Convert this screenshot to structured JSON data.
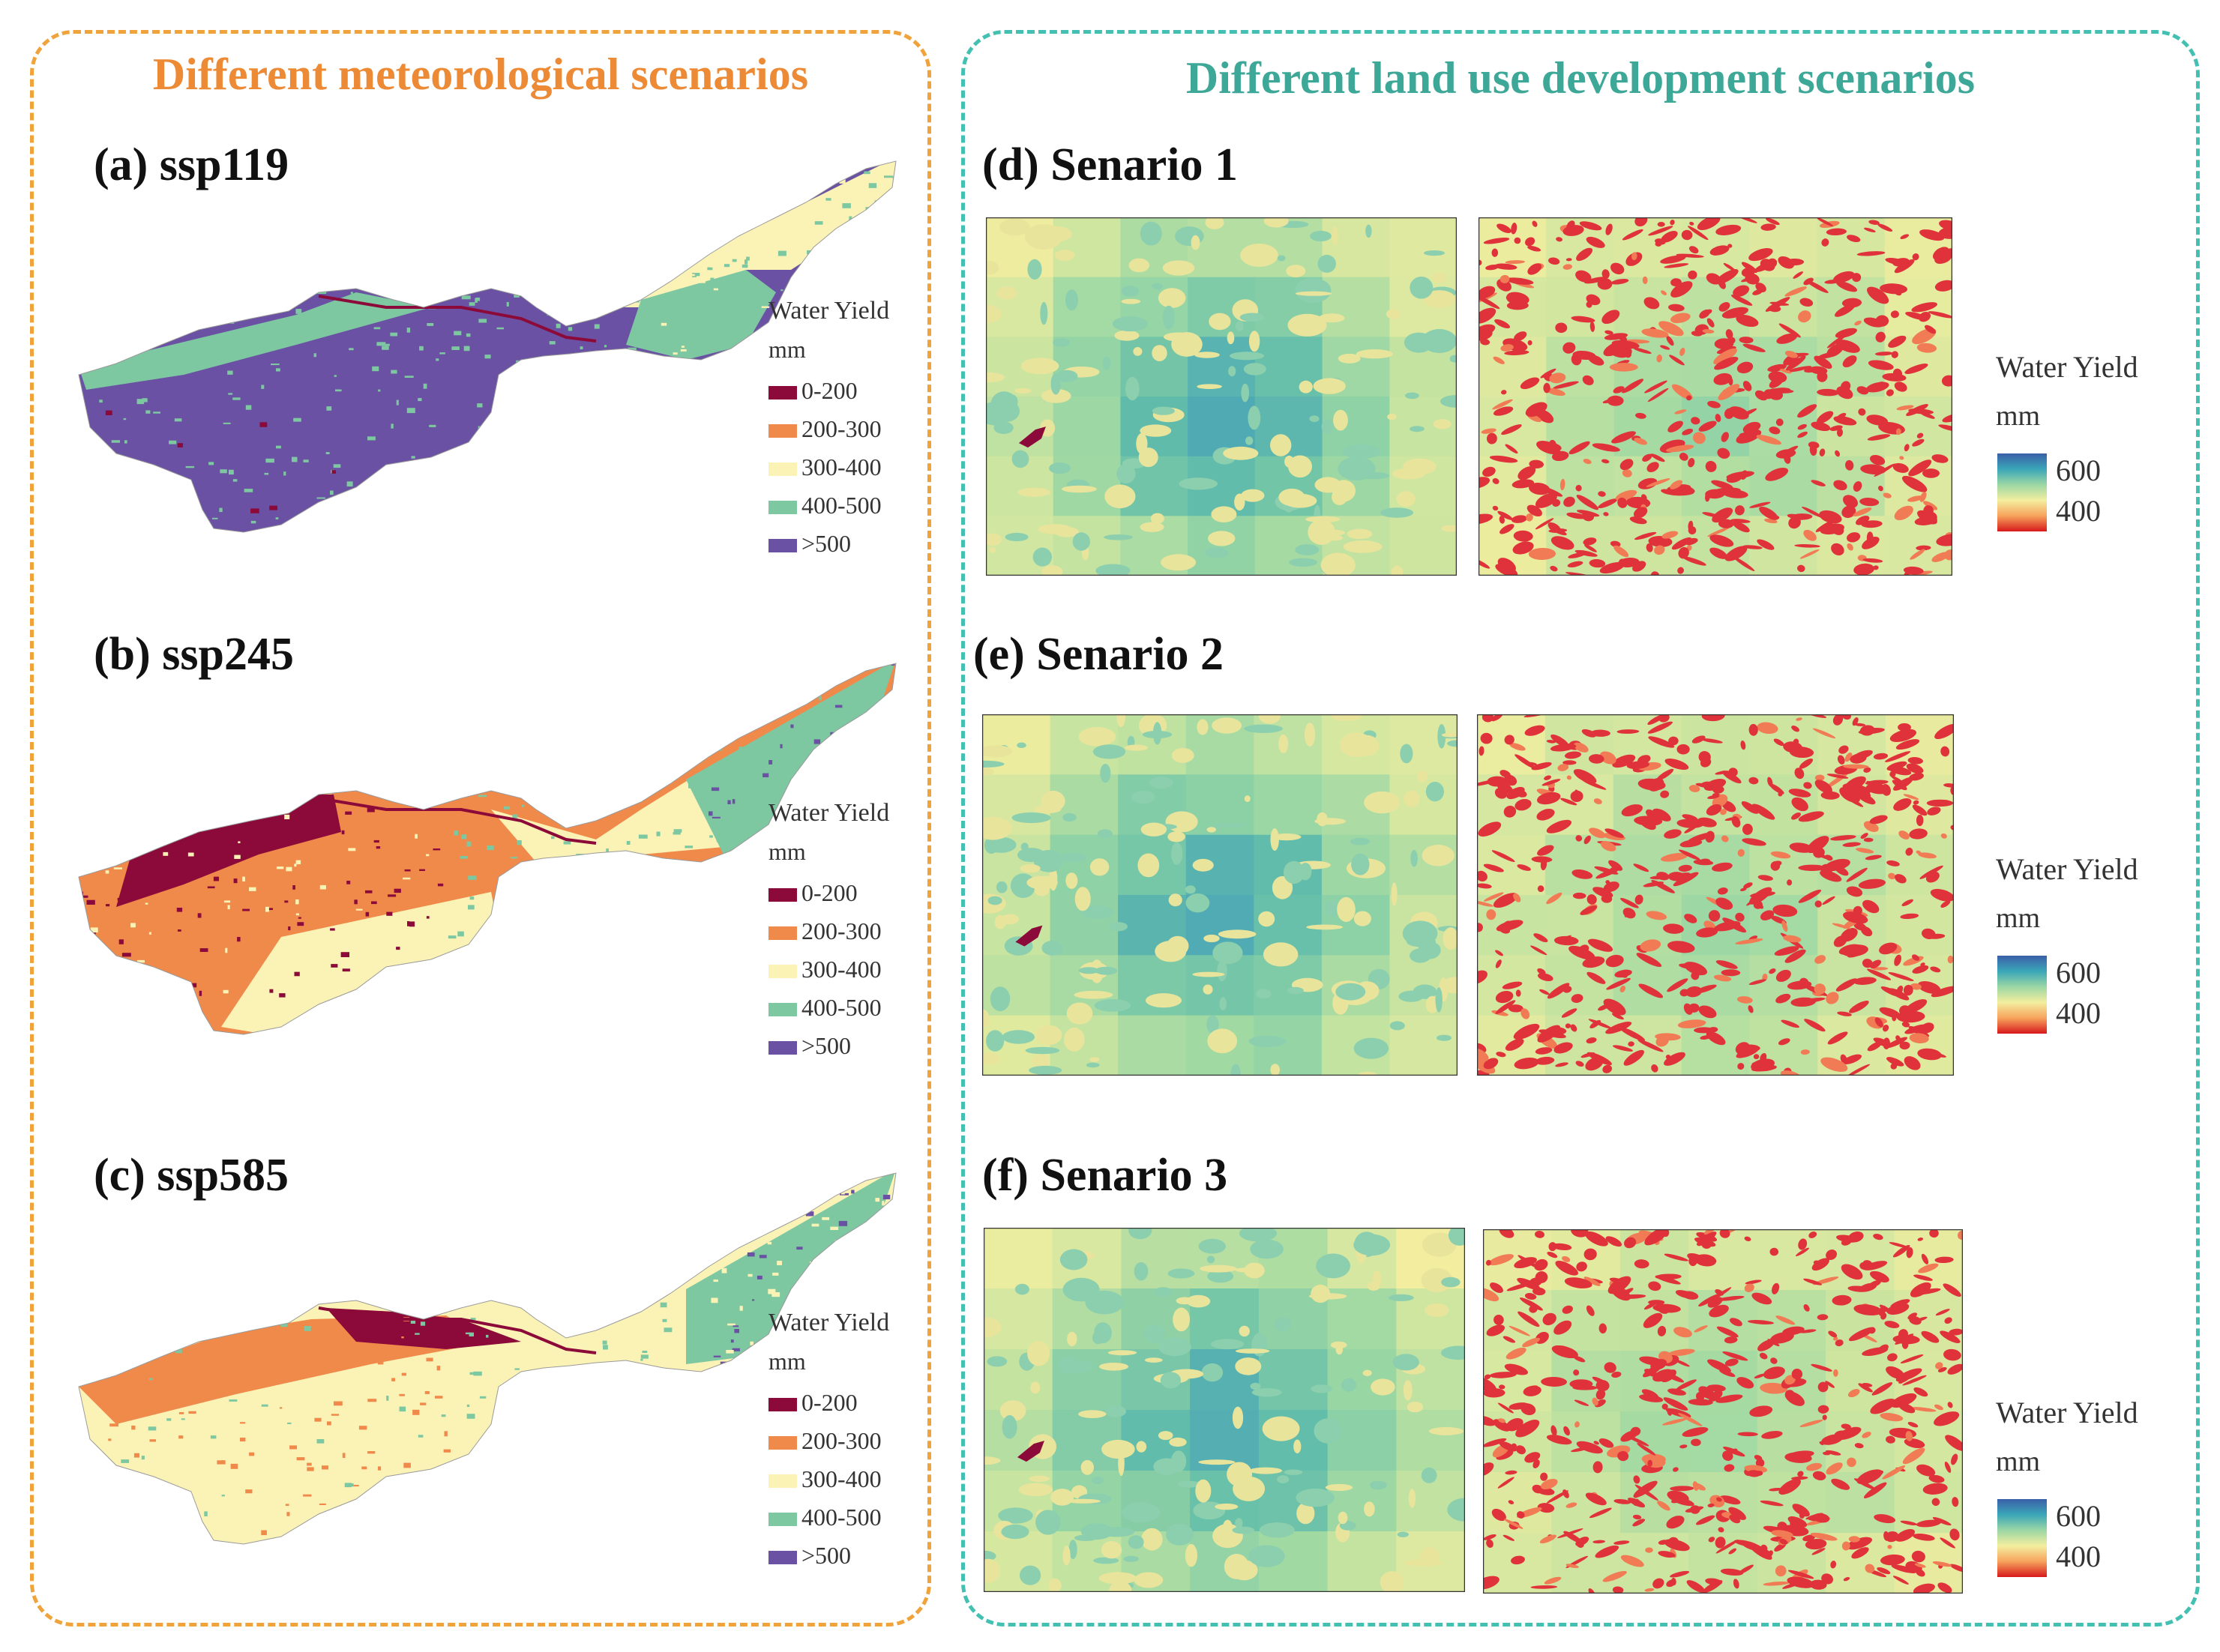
{
  "left_panel": {
    "title": "Different meteorological scenarios",
    "maps": [
      {
        "label": "(a) ssp119",
        "legend_title": "Water Yield",
        "legend_unit": "mm"
      },
      {
        "label": "(b) ssp245",
        "legend_title": "Water Yield",
        "legend_unit": "mm"
      },
      {
        "label": "(c) ssp585",
        "legend_title": "Water Yield",
        "legend_unit": "mm"
      }
    ],
    "legend_classes": [
      {
        "label": "0-200",
        "color": "#8b0a3a"
      },
      {
        "label": "200-300",
        "color": "#f08a4b"
      },
      {
        "label": "300-400",
        "color": "#fbf3b6"
      },
      {
        "label": "400-500",
        "color": "#7dc7a1"
      },
      {
        "label": ">500",
        "color": "#6a51a3"
      }
    ]
  },
  "right_panel": {
    "title": "Different land use development scenarios",
    "scenarios": [
      {
        "label": "(d) Senario 1"
      },
      {
        "label": "(e) Senario 2"
      },
      {
        "label": "(f) Senario 3"
      }
    ],
    "colorbar": {
      "title": "Water Yield",
      "unit": "mm",
      "max_label": "600",
      "min_label": "400",
      "colors": [
        "#3a5fa8",
        "#3aa6b8",
        "#9bd7a4",
        "#f3ee9f",
        "#f7a35c",
        "#d7191c"
      ]
    }
  }
}
